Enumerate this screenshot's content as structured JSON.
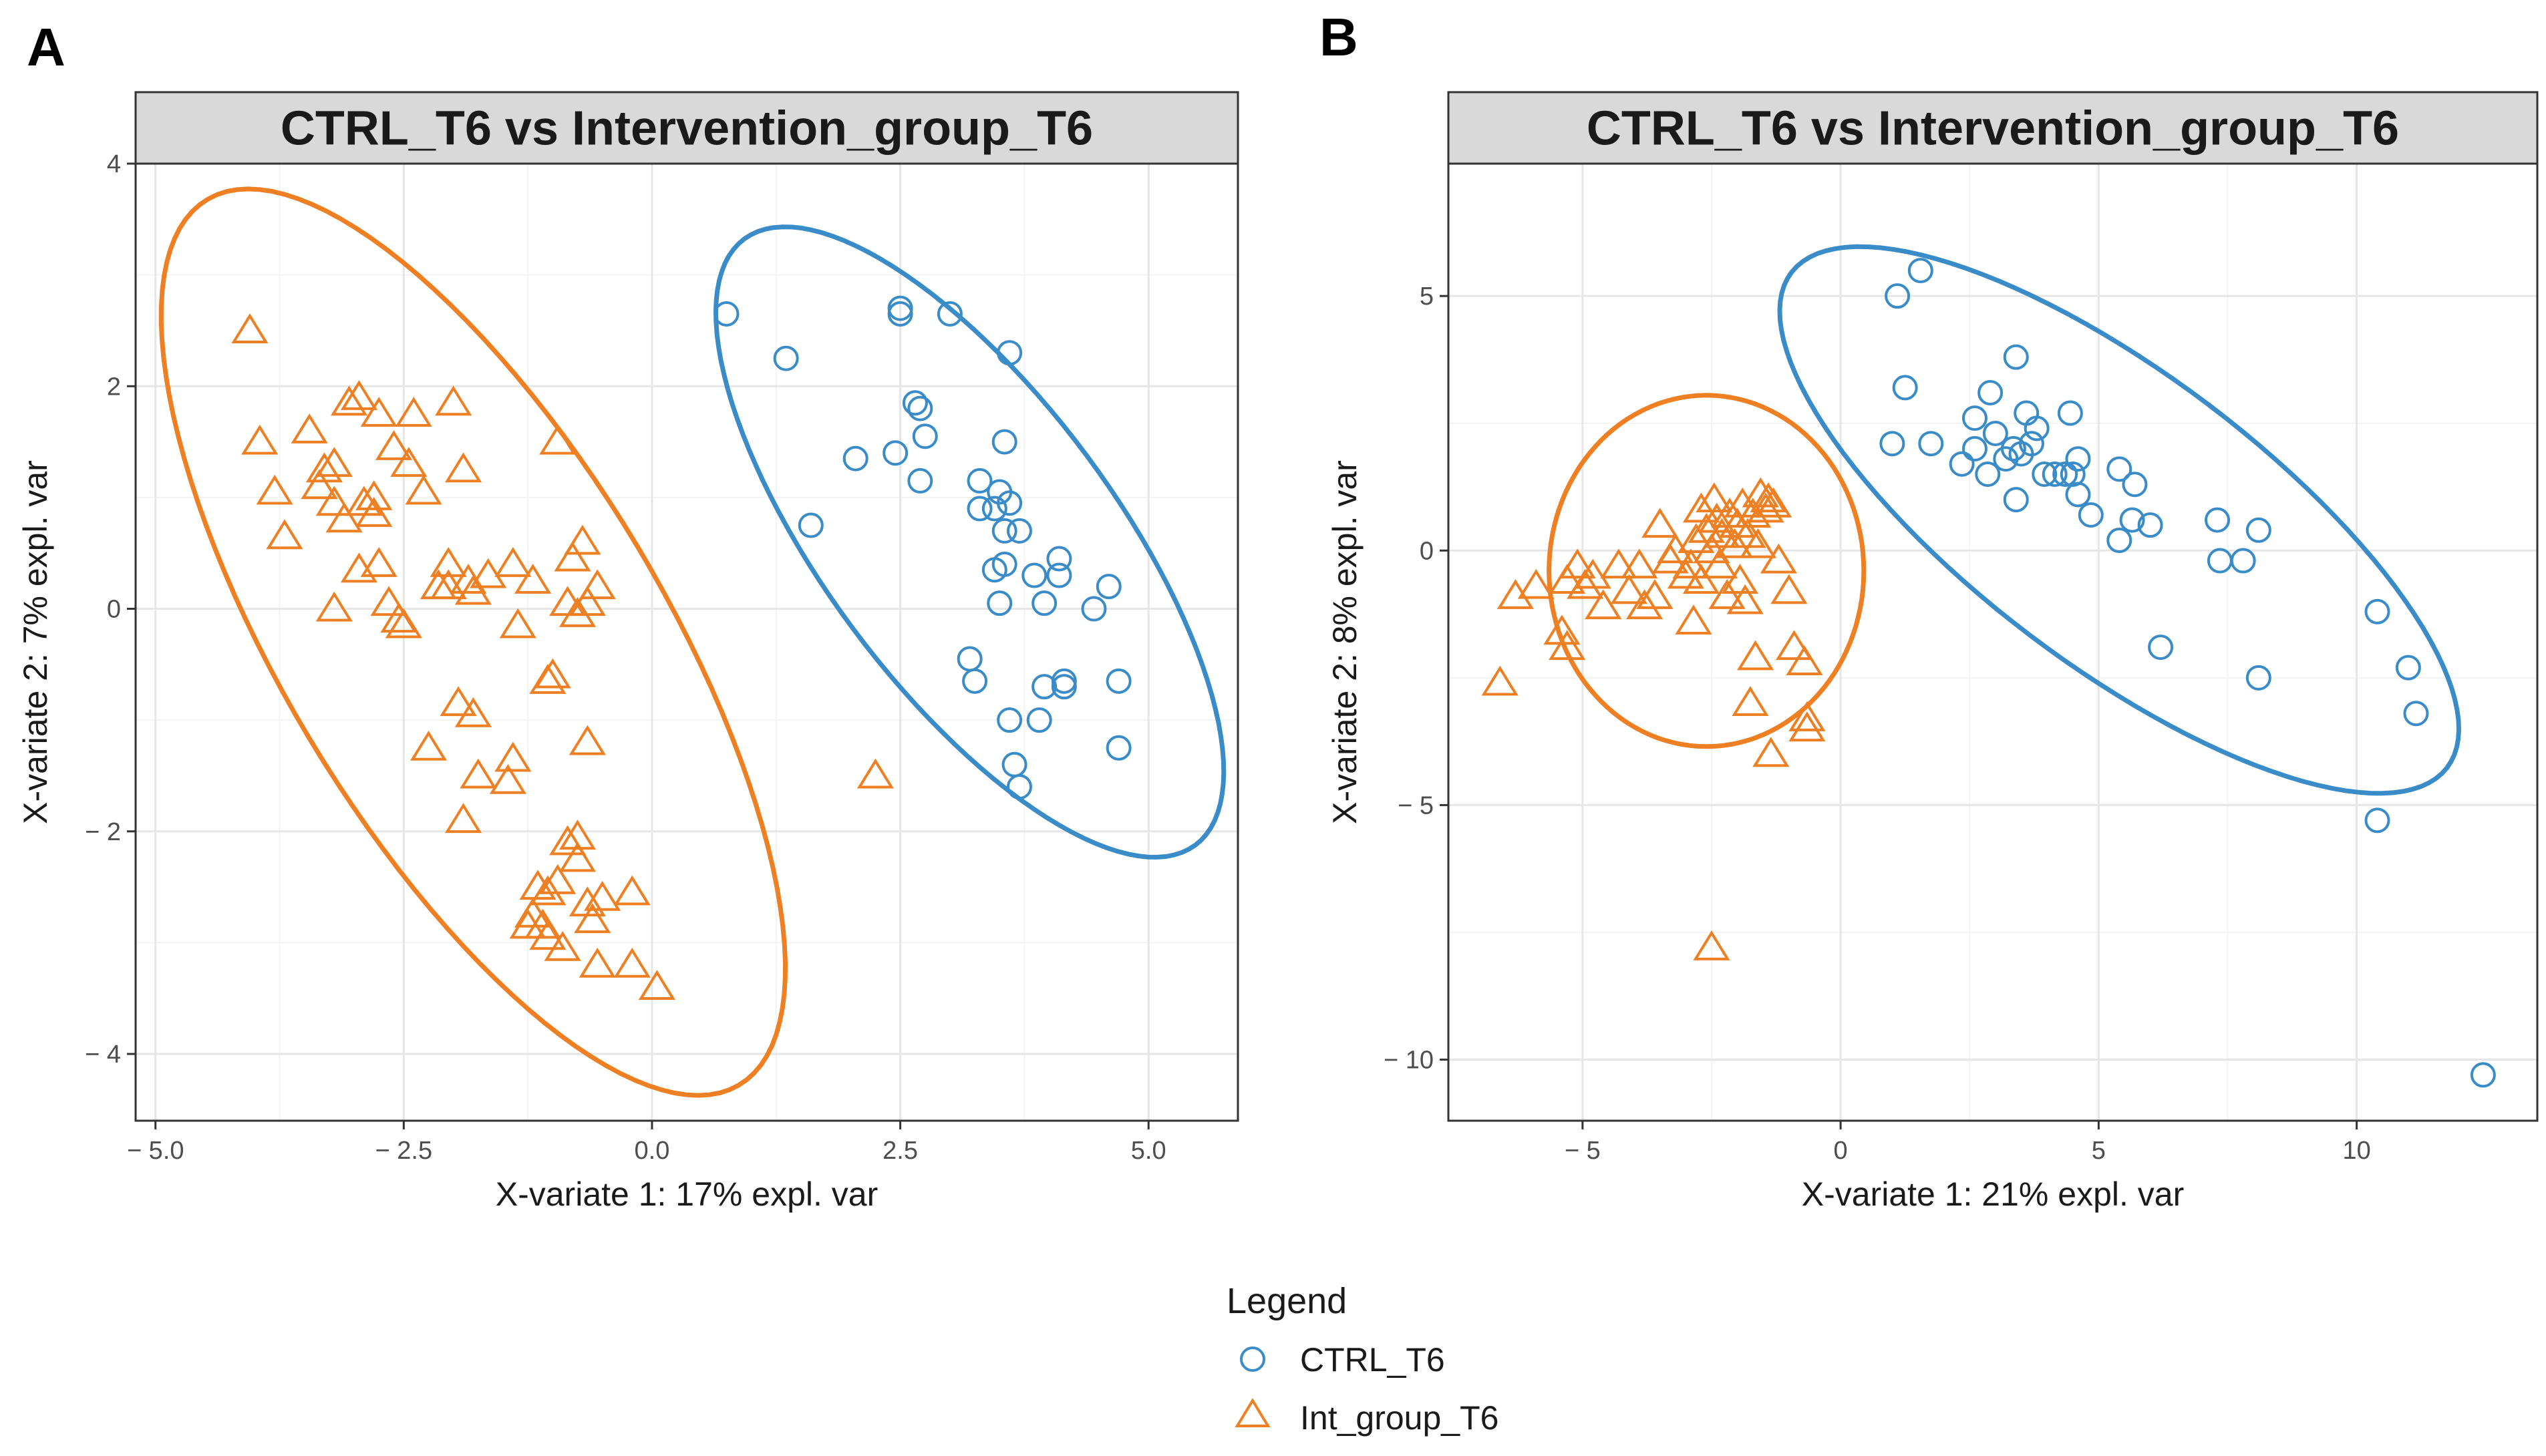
{
  "colors": {
    "ctrl": "#3a8cc9",
    "intervention": "#ee7f22"
  },
  "legend": {
    "title": "Legend",
    "items": [
      {
        "label": "CTRL_T6",
        "shape": "circle",
        "series": "ctrl"
      },
      {
        "label": "Int_group_T6",
        "shape": "triangle",
        "series": "intervention"
      }
    ]
  },
  "chart_data": [
    {
      "panel_letter": "A",
      "type": "scatter",
      "title": "CTRL_T6 vs Intervention_group_T6",
      "xlabel": "X-variate 1: 17% expl. var",
      "ylabel": "X-variate 2: 7% expl. var",
      "xlim": [
        -5.2,
        5.9
      ],
      "ylim": [
        -4.6,
        4.0
      ],
      "xticks": [
        -5.0,
        -2.5,
        0.0,
        2.5,
        5.0
      ],
      "xtick_labels": [
        "− 5.0",
        "− 2.5",
        "0.0",
        "2.5",
        "5.0"
      ],
      "yticks": [
        -4,
        -2,
        0,
        2,
        4
      ],
      "ytick_labels": [
        "− 4",
        "− 2",
        "0",
        "2",
        "4"
      ],
      "series": [
        {
          "name": "CTRL_T6",
          "key": "ctrl",
          "shape": "circle",
          "ellipse": {
            "center": [
              3.2,
              0.6
            ],
            "semi_axes": [
              3.55,
              1.4
            ],
            "angle_deg": -49
          },
          "points": [
            [
              0.75,
              2.65
            ],
            [
              1.35,
              2.25
            ],
            [
              1.6,
              0.75
            ],
            [
              2.5,
              2.7
            ],
            [
              2.5,
              2.65
            ],
            [
              3.0,
              2.65
            ],
            [
              2.65,
              1.85
            ],
            [
              2.7,
              1.8
            ],
            [
              2.75,
              1.55
            ],
            [
              2.05,
              1.35
            ],
            [
              2.45,
              1.4
            ],
            [
              2.7,
              1.15
            ],
            [
              3.6,
              2.3
            ],
            [
              3.55,
              1.5
            ],
            [
              3.3,
              1.15
            ],
            [
              3.3,
              0.9
            ],
            [
              3.45,
              0.9
            ],
            [
              3.5,
              1.05
            ],
            [
              3.6,
              0.95
            ],
            [
              3.7,
              0.7
            ],
            [
              3.45,
              0.35
            ],
            [
              3.55,
              0.4
            ],
            [
              3.55,
              0.7
            ],
            [
              3.5,
              0.05
            ],
            [
              3.85,
              0.3
            ],
            [
              4.1,
              0.45
            ],
            [
              4.1,
              0.3
            ],
            [
              3.95,
              0.05
            ],
            [
              4.45,
              0.0
            ],
            [
              4.6,
              0.2
            ],
            [
              3.2,
              -0.45
            ],
            [
              3.25,
              -0.65
            ],
            [
              3.95,
              -0.7
            ],
            [
              4.15,
              -0.7
            ],
            [
              4.15,
              -0.65
            ],
            [
              4.7,
              -0.65
            ],
            [
              3.6,
              -1.0
            ],
            [
              3.9,
              -1.0
            ],
            [
              3.65,
              -1.4
            ],
            [
              3.7,
              -1.6
            ],
            [
              4.7,
              -1.25
            ]
          ]
        },
        {
          "name": "Int_group_T6",
          "key": "intervention",
          "shape": "triangle",
          "ellipse": {
            "center": [
              -1.8,
              -0.3
            ],
            "semi_axes": [
              4.8,
              1.85
            ],
            "angle_deg": -55
          },
          "points": [
            [
              -4.05,
              2.5
            ],
            [
              -3.95,
              1.5
            ],
            [
              -3.8,
              1.05
            ],
            [
              -3.7,
              0.65
            ],
            [
              -3.45,
              1.6
            ],
            [
              -3.3,
              1.25
            ],
            [
              -3.35,
              1.1
            ],
            [
              -3.2,
              1.3
            ],
            [
              -3.2,
              0.95
            ],
            [
              -3.1,
              0.8
            ],
            [
              -3.05,
              1.85
            ],
            [
              -2.95,
              1.9
            ],
            [
              -2.9,
              0.95
            ],
            [
              -2.8,
              1.0
            ],
            [
              -2.75,
              1.75
            ],
            [
              -2.6,
              1.45
            ],
            [
              -2.8,
              0.85
            ],
            [
              -2.95,
              0.35
            ],
            [
              -2.75,
              0.4
            ],
            [
              -3.2,
              0.0
            ],
            [
              -2.65,
              0.05
            ],
            [
              -2.55,
              -0.1
            ],
            [
              -2.5,
              -0.15
            ],
            [
              -2.4,
              1.75
            ],
            [
              -2.45,
              1.3
            ],
            [
              -2.3,
              1.05
            ],
            [
              -2.0,
              1.85
            ],
            [
              -1.9,
              1.25
            ],
            [
              -2.05,
              0.4
            ],
            [
              -2.15,
              0.2
            ],
            [
              -2.05,
              0.2
            ],
            [
              -1.85,
              0.25
            ],
            [
              -1.65,
              0.3
            ],
            [
              -1.8,
              0.15
            ],
            [
              -1.4,
              0.4
            ],
            [
              -1.2,
              0.25
            ],
            [
              -1.35,
              -0.15
            ],
            [
              -1.0,
              -0.6
            ],
            [
              -1.05,
              -0.65
            ],
            [
              -0.95,
              1.5
            ],
            [
              -0.8,
              0.45
            ],
            [
              -0.7,
              0.6
            ],
            [
              -0.85,
              0.05
            ],
            [
              -0.75,
              -0.05
            ],
            [
              -0.65,
              0.05
            ],
            [
              -0.55,
              0.2
            ],
            [
              -1.95,
              -0.85
            ],
            [
              -1.8,
              -0.95
            ],
            [
              -1.75,
              -1.5
            ],
            [
              -1.9,
              -1.9
            ],
            [
              -2.25,
              -1.25
            ],
            [
              -1.4,
              -1.35
            ],
            [
              -1.45,
              -1.55
            ],
            [
              -0.65,
              -1.2
            ],
            [
              -0.85,
              -2.1
            ],
            [
              -0.75,
              -2.05
            ],
            [
              -0.75,
              -2.25
            ],
            [
              -1.15,
              -2.5
            ],
            [
              -1.05,
              -2.55
            ],
            [
              -0.95,
              -2.45
            ],
            [
              -1.2,
              -2.75
            ],
            [
              -1.1,
              -2.85
            ],
            [
              -1.25,
              -2.85
            ],
            [
              -1.05,
              -2.95
            ],
            [
              -0.9,
              -3.05
            ],
            [
              -0.65,
              -2.65
            ],
            [
              -0.6,
              -2.8
            ],
            [
              -0.5,
              -2.6
            ],
            [
              -0.55,
              -3.2
            ],
            [
              -0.2,
              -2.55
            ],
            [
              -0.2,
              -3.2
            ],
            [
              0.05,
              -3.4
            ],
            [
              2.25,
              -1.5
            ]
          ]
        }
      ]
    },
    {
      "panel_letter": "B",
      "type": "scatter",
      "title": "CTRL_T6 vs Intervention_group_T6",
      "xlabel": "X-variate 1: 21% expl. var",
      "ylabel": "X-variate 2: 8% expl. var",
      "xlim": [
        -7.6,
        13.5
      ],
      "ylim": [
        -11.2,
        7.6
      ],
      "xticks": [
        -5,
        0,
        5,
        10
      ],
      "xtick_labels": [
        "− 5",
        "0",
        "5",
        "10"
      ],
      "yticks": [
        -10,
        -5,
        0,
        5
      ],
      "ytick_labels": [
        "− 10",
        "− 5",
        "0",
        "5"
      ],
      "series": [
        {
          "name": "CTRL_T6",
          "key": "ctrl",
          "shape": "circle",
          "ellipse": {
            "center": [
              5.4,
              0.6
            ],
            "semi_axes": [
              8.0,
              2.85
            ],
            "angle_deg": -37.5
          },
          "points": [
            [
              1.0,
              2.1
            ],
            [
              1.1,
              5.0
            ],
            [
              1.25,
              3.2
            ],
            [
              1.55,
              5.5
            ],
            [
              1.75,
              2.1
            ],
            [
              2.35,
              1.7
            ],
            [
              2.6,
              2.6
            ],
            [
              2.6,
              2.0
            ],
            [
              2.85,
              1.5
            ],
            [
              2.9,
              3.1
            ],
            [
              3.0,
              2.3
            ],
            [
              3.2,
              1.8
            ],
            [
              3.4,
              3.8
            ],
            [
              3.35,
              2.0
            ],
            [
              3.6,
              2.7
            ],
            [
              3.5,
              1.9
            ],
            [
              3.8,
              2.4
            ],
            [
              3.7,
              2.1
            ],
            [
              3.95,
              1.5
            ],
            [
              4.15,
              1.5
            ],
            [
              4.35,
              1.5
            ],
            [
              4.45,
              2.7
            ],
            [
              4.6,
              1.8
            ],
            [
              4.5,
              1.5
            ],
            [
              4.6,
              1.1
            ],
            [
              4.85,
              0.7
            ],
            [
              3.4,
              1.0
            ],
            [
              5.4,
              1.6
            ],
            [
              5.7,
              1.3
            ],
            [
              5.65,
              0.6
            ],
            [
              5.4,
              0.2
            ],
            [
              6.0,
              0.5
            ],
            [
              6.2,
              -1.9
            ],
            [
              7.3,
              0.6
            ],
            [
              7.35,
              -0.2
            ],
            [
              7.8,
              -0.2
            ],
            [
              8.1,
              0.4
            ],
            [
              8.1,
              -2.5
            ],
            [
              10.4,
              -1.2
            ],
            [
              11.0,
              -2.3
            ],
            [
              11.15,
              -3.2
            ],
            [
              10.4,
              -5.3
            ],
            [
              12.45,
              -10.3
            ]
          ]
        },
        {
          "name": "Int_group_T6",
          "key": "intervention",
          "shape": "triangle",
          "ellipse": {
            "center": [
              -2.6,
              -0.4
            ],
            "semi_axes": [
              3.05,
              3.45
            ],
            "angle_deg": 0
          },
          "points": [
            [
              -6.6,
              -2.6
            ],
            [
              -6.3,
              -0.9
            ],
            [
              -5.9,
              -0.7
            ],
            [
              -5.3,
              -0.6
            ],
            [
              -5.4,
              -1.6
            ],
            [
              -5.3,
              -1.9
            ],
            [
              -5.1,
              -0.3
            ],
            [
              -4.95,
              -0.7
            ],
            [
              -4.8,
              -0.5
            ],
            [
              -4.6,
              -1.1
            ],
            [
              -4.3,
              -0.3
            ],
            [
              -4.1,
              -0.8
            ],
            [
              -3.9,
              -0.3
            ],
            [
              -3.8,
              -1.1
            ],
            [
              -3.6,
              -0.9
            ],
            [
              -3.5,
              0.5
            ],
            [
              -3.3,
              -0.2
            ],
            [
              -3.2,
              0.0
            ],
            [
              -3.0,
              -0.5
            ],
            [
              -2.9,
              -0.3
            ],
            [
              -2.8,
              0.2
            ],
            [
              -2.7,
              -0.6
            ],
            [
              -2.7,
              0.8
            ],
            [
              -2.6,
              0.4
            ],
            [
              -2.5,
              0.0
            ],
            [
              -2.45,
              1.0
            ],
            [
              -2.4,
              0.6
            ],
            [
              -2.35,
              -0.3
            ],
            [
              -2.3,
              0.3
            ],
            [
              -2.2,
              -0.9
            ],
            [
              -2.15,
              0.7
            ],
            [
              -2.05,
              0.1
            ],
            [
              -2.0,
              0.5
            ],
            [
              -1.95,
              -0.6
            ],
            [
              -1.9,
              0.9
            ],
            [
              -1.85,
              -1.0
            ],
            [
              -1.8,
              0.3
            ],
            [
              -1.7,
              0.7
            ],
            [
              -1.6,
              0.1
            ],
            [
              -1.55,
              1.1
            ],
            [
              -1.45,
              0.8
            ],
            [
              -1.4,
              1.0
            ],
            [
              -1.3,
              0.9
            ],
            [
              -1.2,
              -0.2
            ],
            [
              -1.0,
              -0.8
            ],
            [
              -2.85,
              -1.4
            ],
            [
              -1.65,
              -2.1
            ],
            [
              -1.75,
              -3.0
            ],
            [
              -1.35,
              -4.0
            ],
            [
              -0.9,
              -1.9
            ],
            [
              -0.7,
              -2.2
            ],
            [
              -0.65,
              -3.3
            ],
            [
              -0.65,
              -3.5
            ],
            [
              -2.5,
              -7.8
            ]
          ]
        }
      ]
    }
  ]
}
